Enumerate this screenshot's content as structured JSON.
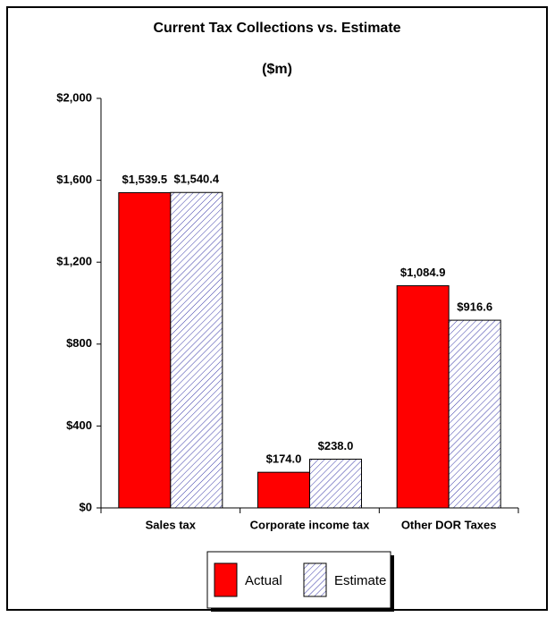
{
  "chart_data": {
    "type": "bar",
    "title": "Current Tax Collections vs. Estimate",
    "subtitle": "($m)",
    "categories": [
      "Sales tax",
      "Corporate income tax",
      "Other DOR Taxes"
    ],
    "series": [
      {
        "name": "Actual",
        "color": "#ff0000",
        "fill": "solid",
        "values": [
          1539.5,
          174.0,
          1084.9
        ],
        "value_labels": [
          "$1,539.5",
          "$174.0",
          "$1,084.9"
        ]
      },
      {
        "name": "Estimate",
        "color": "#3a3aa8",
        "fill": "hatch",
        "values": [
          1540.4,
          238.0,
          916.6
        ],
        "value_labels": [
          "$1,540.4",
          "$238.0",
          "$916.6"
        ]
      }
    ],
    "ylim": [
      0,
      2000
    ],
    "yticks": [
      {
        "value": 0,
        "label": "$0"
      },
      {
        "value": 400,
        "label": "$400"
      },
      {
        "value": 800,
        "label": "$800"
      },
      {
        "value": 1200,
        "label": "$1,200"
      },
      {
        "value": 1600,
        "label": "$1,600"
      },
      {
        "value": 2000,
        "label": "$2,000"
      }
    ],
    "legend": "bottom"
  }
}
